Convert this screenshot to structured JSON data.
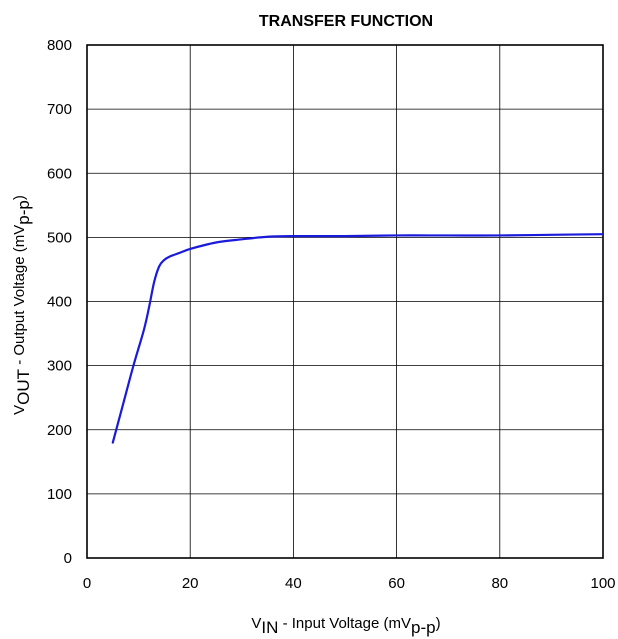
{
  "chart_data": {
    "type": "line",
    "title": "TRANSFER FUNCTION",
    "xlabel": {
      "main": "V",
      "sub": "IN",
      "rest": " - Input Voltage (mV",
      "unit_sub": "p-p",
      "close": ")"
    },
    "ylabel": {
      "main": "V",
      "sub": "OUT",
      "rest": " - Output Voltage (mV",
      "unit_sub": "p-p",
      "close": ")"
    },
    "xlim": [
      0,
      100
    ],
    "ylim": [
      0,
      800
    ],
    "x_ticks": [
      0,
      20,
      40,
      60,
      80,
      100
    ],
    "y_ticks": [
      0,
      100,
      200,
      300,
      400,
      500,
      600,
      700,
      800
    ],
    "grid": true,
    "line_color": "#1a1adc",
    "series": [
      {
        "x": [
          5,
          7,
          9,
          11,
          12,
          13,
          14,
          15,
          16,
          18,
          20,
          25,
          30,
          35,
          40,
          50,
          60,
          70,
          80,
          90,
          100
        ],
        "y": [
          180,
          240,
          300,
          355,
          390,
          430,
          455,
          465,
          470,
          476,
          482,
          492,
          497,
          501,
          502,
          502,
          503,
          503,
          503,
          504,
          505
        ]
      }
    ]
  }
}
